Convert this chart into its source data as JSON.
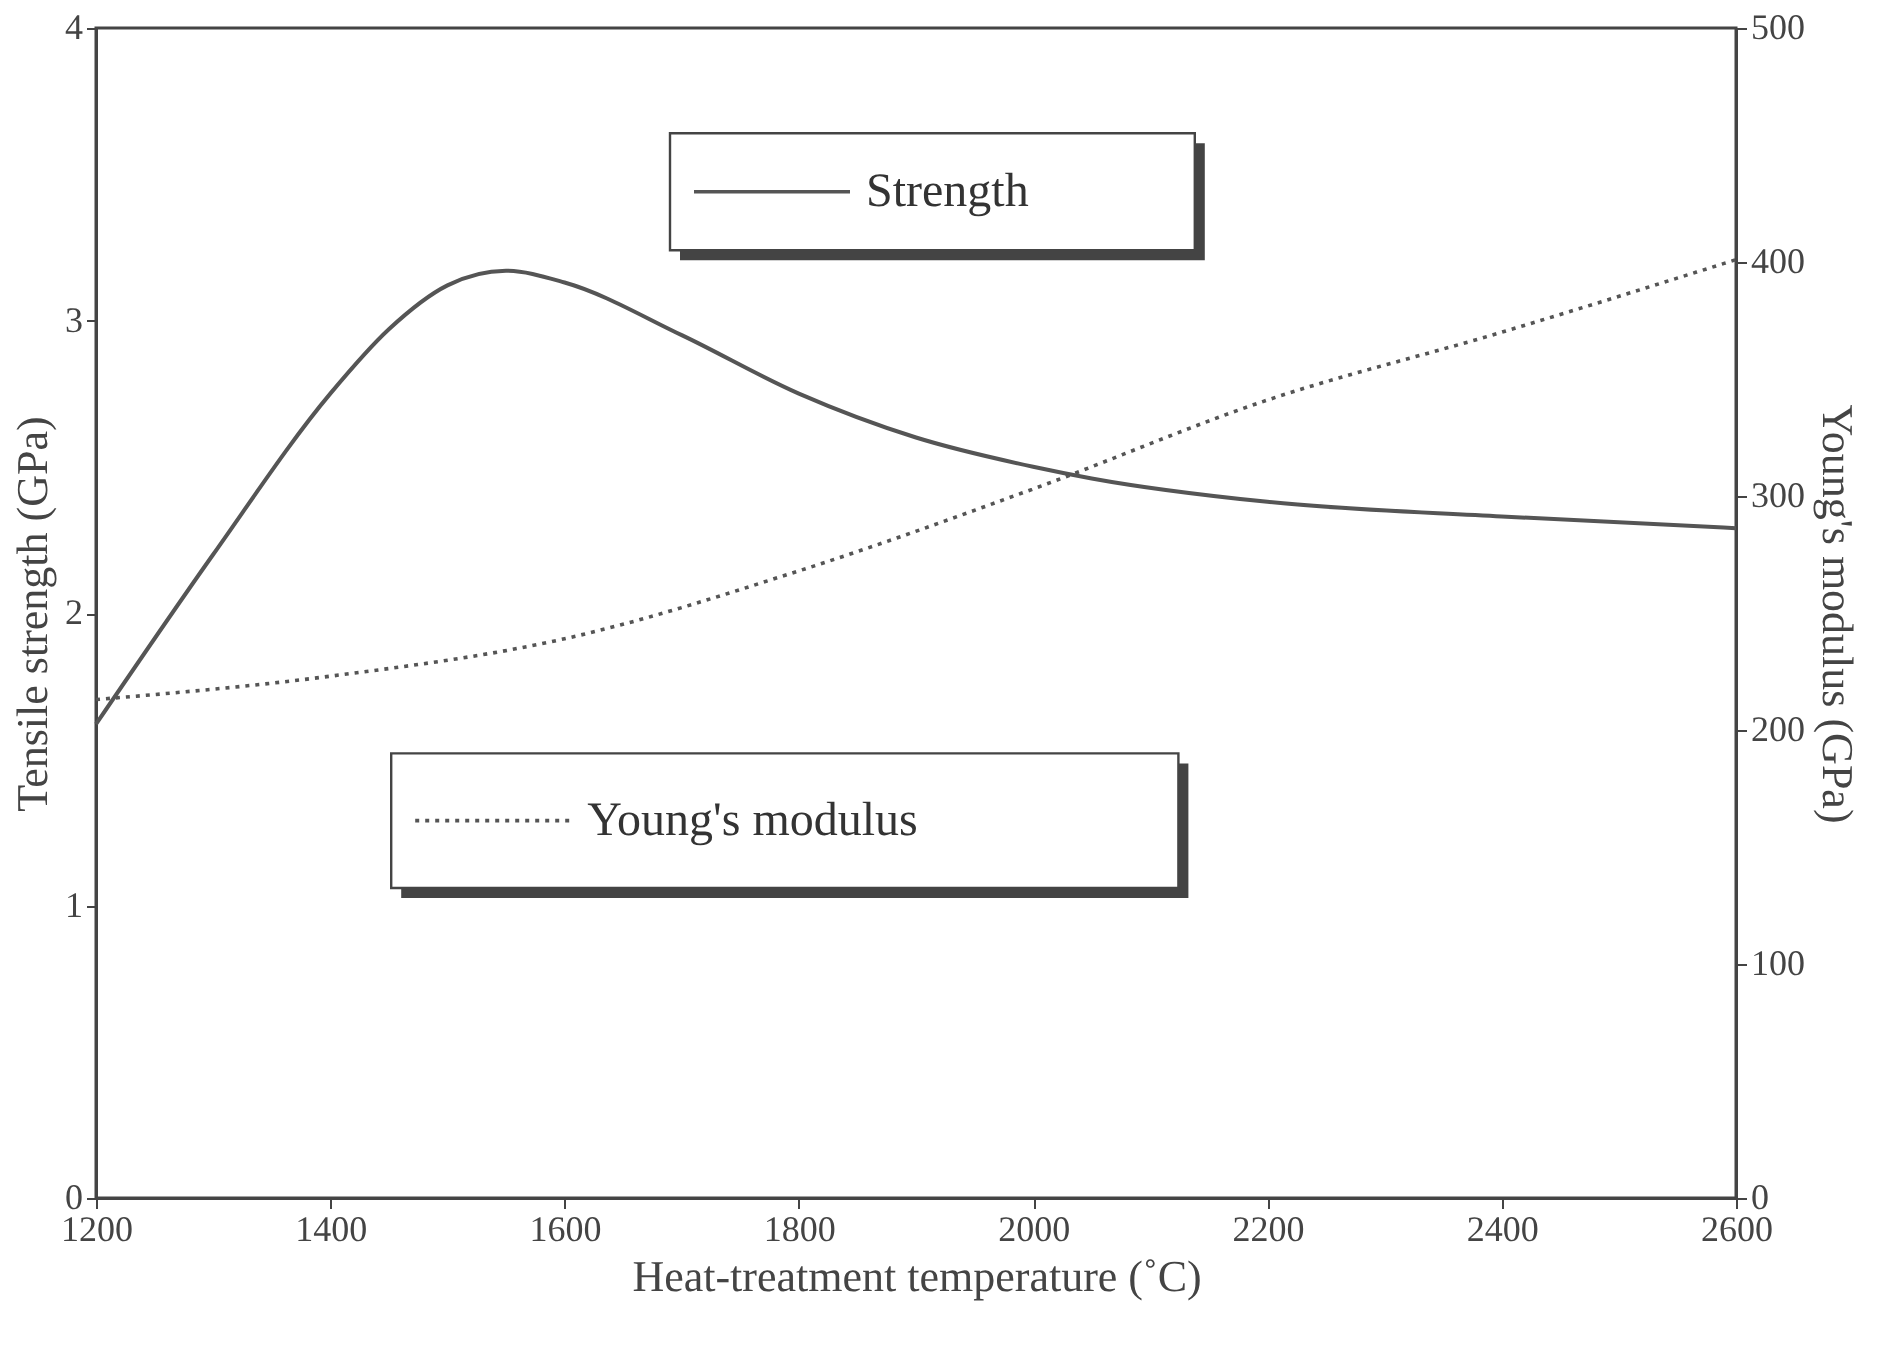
{
  "chart_data": {
    "type": "line",
    "xlabel": "Heat-treatment temperature (˚C)",
    "ylabel": "Tensile strength (GPa)",
    "y2label": "Young's modulus (GPa)",
    "xlim": [
      1200,
      2600
    ],
    "xticks": [
      1200,
      1400,
      1600,
      1800,
      2000,
      2200,
      2400,
      2600
    ],
    "ylim": [
      0,
      4
    ],
    "yticks": [
      0,
      1,
      2,
      3,
      4
    ],
    "y2lim": [
      0,
      500
    ],
    "y2ticks": [
      0,
      100,
      200,
      300,
      400,
      500
    ],
    "grid": false,
    "legend": "top",
    "marker": "none",
    "series": [
      {
        "name": "Strength",
        "color": "#555555",
        "line_style": "solid",
        "axis": "y",
        "x": [
          1200,
          1300,
          1400,
          1450,
          1500,
          1550,
          1600,
          1700,
          1800,
          1900,
          2000,
          2050,
          2200,
          2400,
          2600
        ],
        "values": [
          1.62,
          2.2,
          2.75,
          2.97,
          3.12,
          3.17,
          3.13,
          2.95,
          2.75,
          2.6,
          2.5,
          2.46,
          2.38,
          2.33,
          2.29
        ]
      },
      {
        "name": "Young's modulus",
        "color": "#555555",
        "line_style": "dotted",
        "axis": "y2",
        "x": [
          1200,
          1400,
          1600,
          1800,
          2000,
          2200,
          2400,
          2600
        ],
        "values": [
          213,
          223,
          239,
          268,
          303,
          341,
          370,
          401
        ]
      }
    ]
  }
}
